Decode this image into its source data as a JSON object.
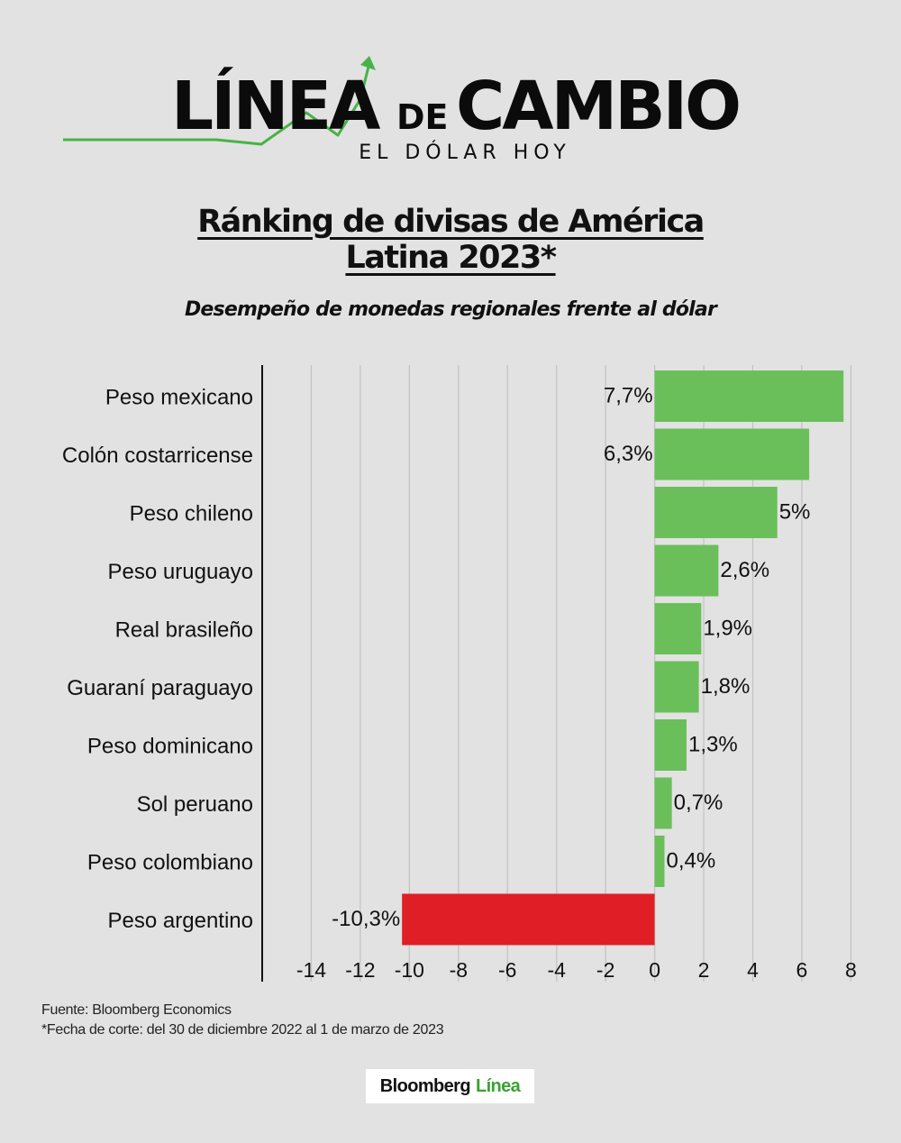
{
  "colors": {
    "background": "#e2e2e2",
    "positive_bar": "#6abf5a",
    "negative_bar": "#e01e26",
    "grid": "#c4c4c4",
    "axis": "#111111",
    "brand_green": "#3aa233"
  },
  "header": {
    "logo_main": "LÍNEA",
    "logo_de": "DE",
    "logo_cambio": "CAMBIO",
    "logo_tagline": "EL DÓLAR HOY",
    "logo_icon": "rising-trend-arrow-icon"
  },
  "title_line1": "Ránking de divisas de América",
  "title_line2": "Latina 2023*",
  "subtitle": "Desempeño de monedas regionales frente al dólar",
  "chart_data": {
    "type": "bar",
    "orientation": "horizontal",
    "categories": [
      "Peso mexicano",
      "Colón costarricense",
      "Peso chileno",
      "Peso uruguayo",
      "Real brasileño",
      "Guaraní paraguayo",
      "Peso dominicano",
      "Sol peruano",
      "Peso colombiano",
      "Peso argentino"
    ],
    "values": [
      7.7,
      6.3,
      5,
      2.6,
      1.9,
      1.8,
      1.3,
      0.7,
      0.4,
      -10.3
    ],
    "value_labels": [
      "7,7%",
      "6,3%",
      "5%",
      "2,6%",
      "1,9%",
      "1,8%",
      "1,3%",
      "0,7%",
      "0,4%",
      "-10,3%"
    ],
    "xlim": [
      -16,
      8.5
    ],
    "xticks": [
      -14,
      -12,
      -10,
      -8,
      -6,
      -4,
      -2,
      0,
      2,
      4,
      6,
      8
    ],
    "xtick_labels": [
      "-14",
      "-12",
      "-10",
      "-8",
      "-6",
      "-4",
      "-2",
      "0",
      "2",
      "4",
      "6",
      "8"
    ],
    "grid": true
  },
  "notes": {
    "source": "Fuente: Bloomberg Economics",
    "cutoff": "*Fecha de corte: del 30 de diciembre 2022 al 1 de marzo de 2023"
  },
  "footer": {
    "brand": "Bloomberg",
    "brand_accent": "Línea"
  }
}
